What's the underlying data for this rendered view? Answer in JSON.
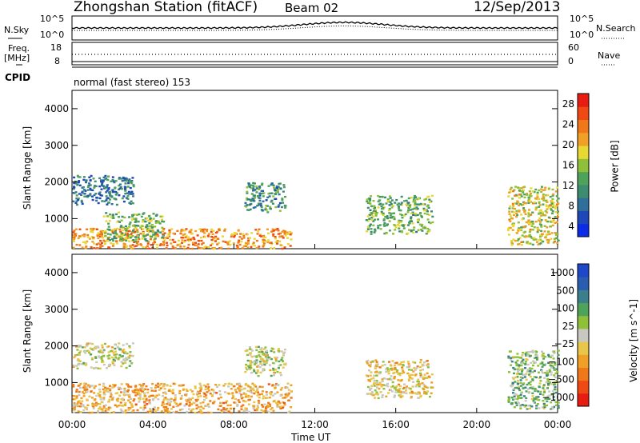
{
  "header": {
    "station": "Zhongshan Station (fitACF)",
    "beam": "Beam 02",
    "date": "12/Sep/2013"
  },
  "params_panel": {
    "nsky_label": "N.Sky",
    "nsearch_label": "N.Search",
    "freq_label_1": "Freq.",
    "freq_label_2": "[MHz]",
    "nave_label": "Nave",
    "cpid_label": "CPID",
    "cpid_value": "normal (fast stereo) 153",
    "noise_ticks": [
      "10^5",
      "10^0"
    ],
    "noise_right_ticks": [
      "10^5",
      "10^0"
    ],
    "freq_ticks": [
      "18",
      "8"
    ],
    "nave_ticks": [
      "60",
      "0"
    ]
  },
  "colors": {
    "power_scale": [
      "#0a2be8",
      "#1e48b8",
      "#2f6f9a",
      "#3c8c70",
      "#4fa25a",
      "#8fc03a",
      "#e8d832",
      "#f0a025",
      "#f07818",
      "#f04a14",
      "#e81c10"
    ],
    "velocity_scale": [
      "#e81c10",
      "#f04a14",
      "#f07818",
      "#f0a025",
      "#e8c64a",
      "#c8c8c0",
      "#8fc03a",
      "#4fa25a",
      "#3c7f8c",
      "#2a5db0",
      "#1e48c8"
    ]
  },
  "chart_data": [
    {
      "type": "heatmap",
      "title": "",
      "xlabel": "",
      "ylabel": "Slant Range [km]",
      "xlim": [
        "00:00",
        "24:00"
      ],
      "ylim": [
        180,
        4500
      ],
      "y_ticks": [
        "1000",
        "2000",
        "3000",
        "4000"
      ],
      "colorbar_label": "Power [dB]",
      "colorbar_ticks": [
        "28",
        "24",
        "20",
        "16",
        "12",
        "8",
        "4"
      ],
      "colorbar_range": [
        0,
        30
      ],
      "regions": [
        {
          "t": [
            0.0,
            10.8
          ],
          "range_km": [
            200,
            750
          ],
          "value": 22
        },
        {
          "t": [
            1.5,
            4.5
          ],
          "range_km": [
            400,
            1200
          ],
          "value": 14
        },
        {
          "t": [
            0.0,
            3.0
          ],
          "range_km": [
            1400,
            2200
          ],
          "value": 8
        },
        {
          "t": [
            8.5,
            10.5
          ],
          "range_km": [
            1200,
            2000
          ],
          "value": 10
        },
        {
          "t": [
            14.5,
            17.8
          ],
          "range_km": [
            600,
            1650
          ],
          "value": 13
        },
        {
          "t": [
            21.5,
            24.0
          ],
          "range_km": [
            300,
            1900
          ],
          "value": 17
        }
      ]
    },
    {
      "type": "heatmap",
      "title": "",
      "xlabel": "Time UT",
      "ylabel": "Slant Range [km]",
      "xlim": [
        "00:00",
        "24:00"
      ],
      "ylim": [
        180,
        4500
      ],
      "x_ticks": [
        "00:00",
        "04:00",
        "08:00",
        "12:00",
        "16:00",
        "20:00",
        "00:00"
      ],
      "y_ticks": [
        "1000",
        "2000",
        "3000",
        "4000"
      ],
      "colorbar_label": "Velocity [m s^-1]",
      "colorbar_ticks": [
        "1000",
        "500",
        "100",
        "25",
        "−25",
        "−100",
        "−500",
        "−1000"
      ],
      "colorbar_range": [
        -1000,
        1000
      ],
      "regions": [
        {
          "t": [
            0.0,
            10.8
          ],
          "range_km": [
            200,
            1000
          ],
          "value": -300
        },
        {
          "t": [
            0.0,
            3.0
          ],
          "range_km": [
            1400,
            2100
          ],
          "value": 0
        },
        {
          "t": [
            8.5,
            10.5
          ],
          "range_km": [
            1200,
            2000
          ],
          "value": 10
        },
        {
          "t": [
            14.5,
            17.8
          ],
          "range_km": [
            600,
            1650
          ],
          "value": -150
        },
        {
          "t": [
            21.5,
            24.0
          ],
          "range_km": [
            300,
            1900
          ],
          "value": 200
        }
      ]
    }
  ]
}
